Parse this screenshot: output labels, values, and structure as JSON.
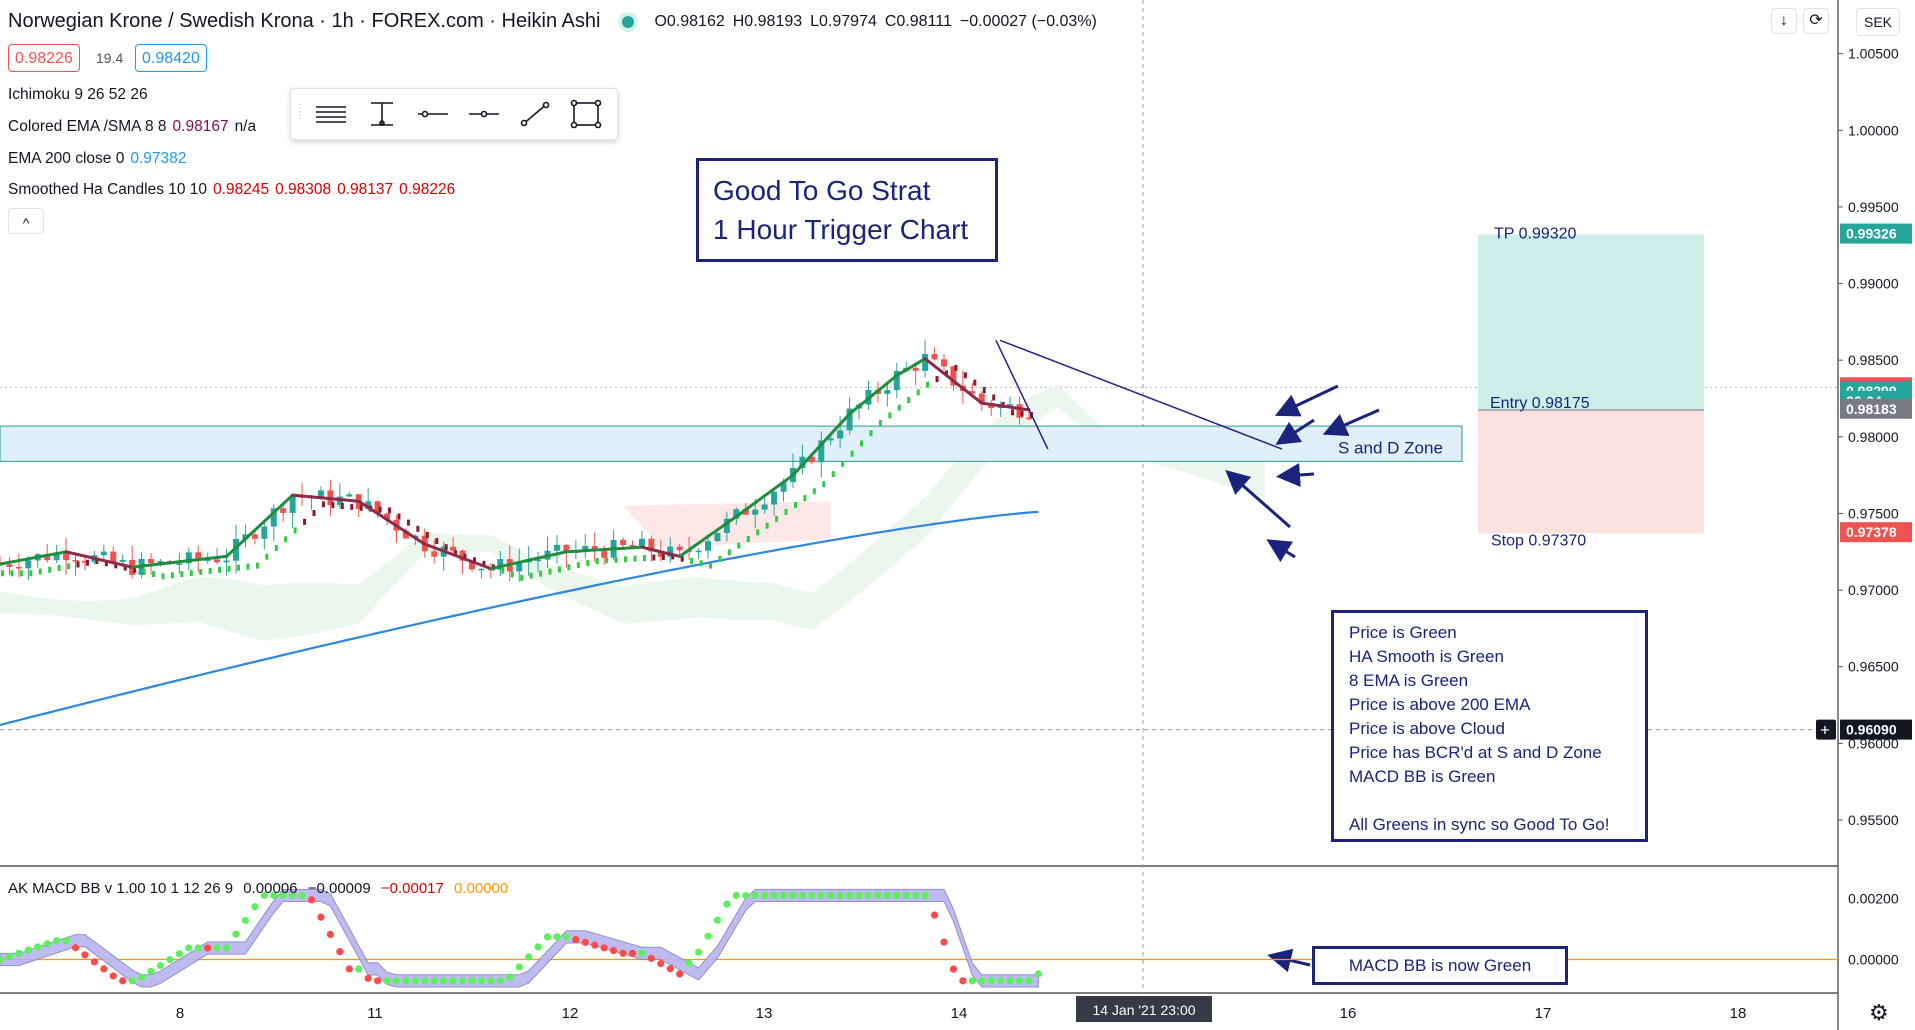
{
  "header": {
    "symbol": "Norwegian Krone / Swedish Krona · 1h · FOREX.com · Heikin Ashi",
    "open": "O0.98162",
    "high": "H0.98193",
    "low": "L0.97974",
    "close": "C0.98111",
    "change": "−0.00027 (−0.03%)",
    "sell_price": "0.98226",
    "spread": "19.4",
    "buy_price": "0.98420",
    "currency": "SEK"
  },
  "indicators": [
    {
      "name": "Ichimoku 9 26 52 26",
      "values": []
    },
    {
      "name": "Colored EMA /SMA 8 8",
      "values": [
        {
          "text": "0.98167",
          "color": "#880e4f"
        },
        {
          "text": "n/a",
          "color": "#131722"
        }
      ]
    },
    {
      "name": "EMA 200 close 0",
      "values": [
        {
          "text": "0.97382",
          "color": "#2196f3"
        }
      ]
    },
    {
      "name": "Smoothed Ha Candles 10 10",
      "values": [
        {
          "text": "0.98245",
          "color": "#d50000"
        },
        {
          "text": "0.98308",
          "color": "#d50000"
        },
        {
          "text": "0.98137",
          "color": "#d50000"
        },
        {
          "text": "0.98226",
          "color": "#d50000"
        }
      ]
    }
  ],
  "collapse_label": "^",
  "toolbar": {
    "tools": [
      "menu-lines-icon",
      "vertical-range-icon",
      "horizontal-line-icon",
      "horizontal-ray-icon",
      "trend-line-icon",
      "rectangle-icon"
    ]
  },
  "annotations": {
    "title_lines": [
      "Good To Go Strat",
      "1 Hour Trigger Chart"
    ],
    "conditions": [
      "Price is Green",
      "HA Smooth is Green",
      "8 EMA is Green",
      "Price is above 200 EMA",
      "Price is above Cloud",
      "Price has BCR'd at S and D Zone",
      "MACD BB is Green",
      "",
      "All Greens in sync so Good To Go!"
    ],
    "macd_note": "MACD BB is now Green",
    "zone_label": "S and D Zone"
  },
  "position": {
    "tp_label": "TP 0.99320",
    "entry_label": "Entry 0.98175",
    "stop_label": "Stop 0.97370",
    "tp": 0.9932,
    "entry": 0.98175,
    "stop": 0.9737
  },
  "macd_legend": {
    "name": "AK MACD BB v 1.00 10 1 12 26 9",
    "v1": "0.00006",
    "v2": "−0.00009",
    "v3": "−0.00017",
    "v4": "0.00000"
  },
  "colors": {
    "bull": "#26a69a",
    "bear": "#ef5350",
    "ha_green": "#1e8e3e",
    "ha_maroon": "#8e2a4a",
    "ema200": "#2e86de",
    "annot": "#1a237e",
    "macd_up": "#5cf05c",
    "macd_down": "#ff4a4a"
  },
  "chart_data": [
    {
      "type": "candlestick",
      "style": "Heikin Ashi",
      "x_ticks": [
        "8",
        "11",
        "12",
        "13",
        "14",
        "16",
        "17",
        "18"
      ],
      "crosshair_x": "14 Jan '21  23:00",
      "y_ticks": [
        "1.00500",
        "1.00000",
        "0.99500",
        "0.99000",
        "0.98500",
        "0.98000",
        "0.97500",
        "0.97000",
        "0.96500",
        "0.96000",
        "0.95500"
      ],
      "ylim": [
        0.952,
        1.0085
      ],
      "price_labels": [
        {
          "text": "0.99326",
          "value": 0.99326,
          "color": "#26a69a"
        },
        {
          "text": "0.98323",
          "value": 0.98323,
          "color": "#ef5350"
        },
        {
          "text": "0.98299",
          "value": 0.98299,
          "color": "#26a69a"
        },
        {
          "text": "26:04",
          "value": 0.98235,
          "color": "#26a69a"
        },
        {
          "text": "0.98183",
          "value": 0.98183,
          "color": "#787b86"
        },
        {
          "text": "0.97378",
          "value": 0.97378,
          "color": "#ef5350"
        },
        {
          "text": "0.96090",
          "value": 0.9609,
          "color": "#131722"
        }
      ],
      "sd_zone": [
        0.9784,
        0.9807
      ],
      "ema200_points": [
        [
          0,
          0.9612
        ],
        [
          20,
          0.9655
        ],
        [
          40,
          0.9695
        ],
        [
          60,
          0.9718
        ],
        [
          80,
          0.975
        ],
        [
          100,
          0.9782
        ],
        [
          120,
          0.9821
        ],
        [
          134,
          0.975
        ]
      ],
      "ha_smooth_points": [
        [
          0,
          0.9717
        ],
        [
          7,
          0.9725
        ],
        [
          14,
          0.9715
        ],
        [
          24,
          0.9722
        ],
        [
          31,
          0.9762
        ],
        [
          38,
          0.9758
        ],
        [
          45,
          0.973
        ],
        [
          52,
          0.9714
        ],
        [
          60,
          0.9725
        ],
        [
          68,
          0.9728
        ],
        [
          72,
          0.9722
        ],
        [
          78,
          0.9748
        ],
        [
          84,
          0.9775
        ],
        [
          90,
          0.9815
        ],
        [
          95,
          0.984
        ],
        [
          98,
          0.9851
        ],
        [
          104,
          0.9822
        ],
        [
          112,
          0.9815
        ],
        [
          120,
          0.9806
        ],
        [
          126,
          0.9804
        ],
        [
          130,
          0.9817
        ]
      ]
    },
    {
      "type": "line",
      "name": "AK MACD BB",
      "y_ticks": [
        "0.00200",
        "0.00000"
      ],
      "ylim": [
        -0.001,
        0.003
      ]
    }
  ]
}
